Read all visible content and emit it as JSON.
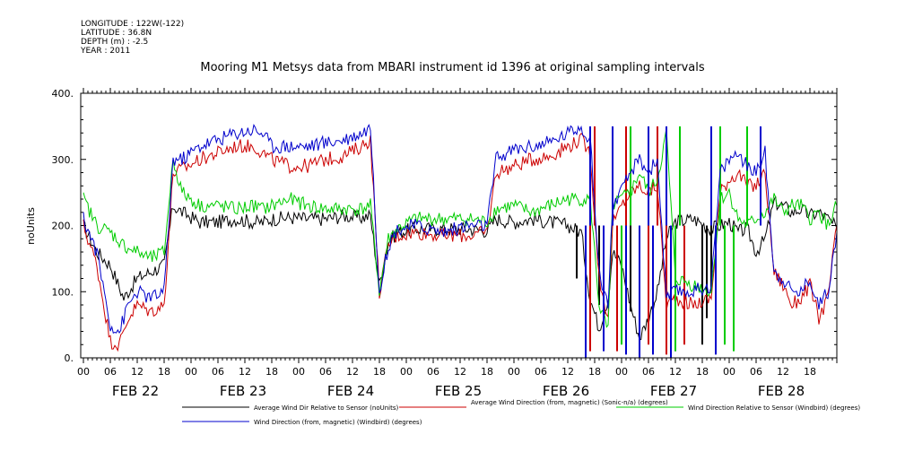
{
  "meta": {
    "longitude": "LONGITUDE : 122W(-122)",
    "latitude": "LATITUDE : 36.8N",
    "depth": "DEPTH (m) : -2.5",
    "year": "YEAR : 2011"
  },
  "chart_data": {
    "type": "line",
    "title": "Mooring M1 Metsys data from MBARI instrument id 1396 at original sampling intervals",
    "ylabel": "noUnits",
    "xlabel": "",
    "ylim": [
      0,
      400
    ],
    "yticks": [
      "0.",
      "100.",
      "200.",
      "300.",
      "400."
    ],
    "xlim_hours": [
      0,
      168
    ],
    "hour_ticks": [
      "00",
      "06",
      "12",
      "18",
      "00",
      "06",
      "12",
      "18",
      "00",
      "06",
      "12",
      "18",
      "00",
      "06",
      "12",
      "18",
      "00",
      "06",
      "12",
      "18",
      "00",
      "06",
      "12",
      "18",
      "00",
      "06",
      "12",
      "18"
    ],
    "day_labels": [
      "FEB 22",
      "FEB 23",
      "FEB 24",
      "FEB 25",
      "FEB 26",
      "FEB 27",
      "FEB 28"
    ],
    "series": [
      {
        "name": "Average Wind Dir Relative to Sensor (noUnits)",
        "color": "#000000",
        "knots": [
          [
            0,
            200
          ],
          [
            3,
            160
          ],
          [
            6,
            140
          ],
          [
            9,
            90
          ],
          [
            12,
            120
          ],
          [
            15,
            130
          ],
          [
            18,
            140
          ],
          [
            20,
            230
          ],
          [
            22,
            220
          ],
          [
            26,
            205
          ],
          [
            30,
            205
          ],
          [
            34,
            210
          ],
          [
            38,
            205
          ],
          [
            40,
            205
          ],
          [
            42,
            210
          ],
          [
            46,
            212
          ],
          [
            50,
            210
          ],
          [
            54,
            210
          ],
          [
            58,
            215
          ],
          [
            62,
            212
          ],
          [
            64,
            215
          ],
          [
            66,
            110
          ],
          [
            68,
            175
          ],
          [
            70,
            190
          ],
          [
            74,
            195
          ],
          [
            80,
            195
          ],
          [
            86,
            195
          ],
          [
            90,
            192
          ],
          [
            92,
            210
          ],
          [
            96,
            205
          ],
          [
            100,
            210
          ],
          [
            104,
            205
          ],
          [
            108,
            200
          ],
          [
            111,
            190
          ],
          [
            113,
            90
          ],
          [
            115,
            45
          ],
          [
            117,
            90
          ],
          [
            118,
            160
          ],
          [
            120,
            140
          ],
          [
            122,
            80
          ],
          [
            124,
            30
          ],
          [
            126,
            60
          ],
          [
            128,
            100
          ],
          [
            130,
            180
          ],
          [
            132,
            205
          ],
          [
            136,
            210
          ],
          [
            140,
            195
          ],
          [
            142,
            200
          ],
          [
            144,
            205
          ],
          [
            146,
            190
          ],
          [
            148,
            195
          ],
          [
            150,
            160
          ],
          [
            152,
            180
          ],
          [
            154,
            235
          ],
          [
            156,
            230
          ],
          [
            158,
            220
          ],
          [
            160,
            225
          ],
          [
            162,
            215
          ],
          [
            164,
            220
          ],
          [
            166,
            210
          ],
          [
            168,
            195
          ]
        ],
        "spikes": [
          [
            110,
            120
          ],
          [
            112,
            140
          ],
          [
            115,
            80
          ],
          [
            122,
            70
          ],
          [
            124,
            40
          ],
          [
            138,
            20
          ],
          [
            139,
            60
          ],
          [
            140,
            100
          ]
        ]
      },
      {
        "name": "Average Wind Direction (from, magnetic) (Sonic-n/a) (degrees)",
        "color": "#cc0000",
        "knots": [
          [
            0,
            200
          ],
          [
            3,
            140
          ],
          [
            6,
            25
          ],
          [
            8,
            20
          ],
          [
            10,
            60
          ],
          [
            12,
            80
          ],
          [
            15,
            70
          ],
          [
            18,
            80
          ],
          [
            20,
            280
          ],
          [
            22,
            285
          ],
          [
            26,
            300
          ],
          [
            30,
            310
          ],
          [
            34,
            320
          ],
          [
            38,
            320
          ],
          [
            40,
            310
          ],
          [
            42,
            300
          ],
          [
            46,
            290
          ],
          [
            50,
            290
          ],
          [
            54,
            300
          ],
          [
            58,
            305
          ],
          [
            62,
            320
          ],
          [
            64,
            330
          ],
          [
            66,
            100
          ],
          [
            68,
            170
          ],
          [
            70,
            185
          ],
          [
            74,
            190
          ],
          [
            80,
            185
          ],
          [
            86,
            185
          ],
          [
            90,
            190
          ],
          [
            92,
            280
          ],
          [
            96,
            290
          ],
          [
            100,
            300
          ],
          [
            104,
            305
          ],
          [
            108,
            320
          ],
          [
            111,
            330
          ],
          [
            113,
            310
          ],
          [
            115,
            120
          ],
          [
            117,
            60
          ],
          [
            118,
            200
          ],
          [
            120,
            230
          ],
          [
            122,
            250
          ],
          [
            124,
            260
          ],
          [
            126,
            250
          ],
          [
            128,
            260
          ],
          [
            130,
            80
          ],
          [
            132,
            90
          ],
          [
            136,
            80
          ],
          [
            140,
            90
          ],
          [
            142,
            250
          ],
          [
            144,
            270
          ],
          [
            146,
            280
          ],
          [
            148,
            260
          ],
          [
            150,
            260
          ],
          [
            152,
            280
          ],
          [
            154,
            130
          ],
          [
            156,
            110
          ],
          [
            158,
            80
          ],
          [
            160,
            90
          ],
          [
            162,
            110
          ],
          [
            164,
            60
          ],
          [
            166,
            90
          ],
          [
            168,
            200
          ]
        ],
        "spikes": [
          [
            113,
            10
          ],
          [
            114,
            350
          ],
          [
            119,
            10
          ],
          [
            121,
            350
          ],
          [
            124,
            5
          ],
          [
            126,
            20
          ],
          [
            128,
            350
          ],
          [
            130,
            5
          ],
          [
            132,
            10
          ],
          [
            134,
            20
          ]
        ]
      },
      {
        "name": "Wind Direction Relative to Sensor (Windbird) (degrees)",
        "color": "#00cc00",
        "knots": [
          [
            0,
            240
          ],
          [
            3,
            200
          ],
          [
            6,
            190
          ],
          [
            9,
            170
          ],
          [
            12,
            160
          ],
          [
            15,
            150
          ],
          [
            18,
            160
          ],
          [
            20,
            300
          ],
          [
            22,
            250
          ],
          [
            26,
            230
          ],
          [
            30,
            230
          ],
          [
            34,
            225
          ],
          [
            38,
            230
          ],
          [
            40,
            225
          ],
          [
            42,
            230
          ],
          [
            46,
            240
          ],
          [
            50,
            230
          ],
          [
            54,
            225
          ],
          [
            58,
            225
          ],
          [
            62,
            225
          ],
          [
            64,
            230
          ],
          [
            66,
            100
          ],
          [
            68,
            180
          ],
          [
            70,
            195
          ],
          [
            74,
            210
          ],
          [
            80,
            210
          ],
          [
            86,
            210
          ],
          [
            90,
            205
          ],
          [
            92,
            225
          ],
          [
            96,
            230
          ],
          [
            100,
            220
          ],
          [
            104,
            230
          ],
          [
            108,
            240
          ],
          [
            111,
            240
          ],
          [
            113,
            240
          ],
          [
            115,
            80
          ],
          [
            117,
            40
          ],
          [
            118,
            230
          ],
          [
            120,
            240
          ],
          [
            122,
            250
          ],
          [
            124,
            280
          ],
          [
            126,
            250
          ],
          [
            128,
            270
          ],
          [
            130,
            340
          ],
          [
            132,
            120
          ],
          [
            136,
            110
          ],
          [
            140,
            100
          ],
          [
            142,
            240
          ],
          [
            144,
            250
          ],
          [
            146,
            210
          ],
          [
            148,
            200
          ],
          [
            150,
            210
          ],
          [
            152,
            220
          ],
          [
            154,
            240
          ],
          [
            156,
            220
          ],
          [
            158,
            230
          ],
          [
            160,
            230
          ],
          [
            162,
            210
          ],
          [
            164,
            220
          ],
          [
            166,
            200
          ],
          [
            168,
            230
          ]
        ],
        "spikes": [
          [
            120,
            20
          ],
          [
            122,
            350
          ],
          [
            132,
            10
          ],
          [
            133,
            350
          ],
          [
            142,
            350
          ],
          [
            143,
            20
          ],
          [
            145,
            10
          ],
          [
            148,
            350
          ]
        ]
      },
      {
        "name": "Wind Direction (from, magnetic) (Windbird) (degrees)",
        "color": "#0000cc",
        "knots": [
          [
            0,
            210
          ],
          [
            3,
            160
          ],
          [
            6,
            50
          ],
          [
            8,
            40
          ],
          [
            10,
            80
          ],
          [
            12,
            100
          ],
          [
            15,
            90
          ],
          [
            18,
            100
          ],
          [
            20,
            300
          ],
          [
            22,
            300
          ],
          [
            26,
            320
          ],
          [
            30,
            330
          ],
          [
            34,
            340
          ],
          [
            38,
            345
          ],
          [
            40,
            340
          ],
          [
            42,
            320
          ],
          [
            46,
            320
          ],
          [
            50,
            320
          ],
          [
            54,
            325
          ],
          [
            58,
            330
          ],
          [
            62,
            340
          ],
          [
            64,
            350
          ],
          [
            66,
            100
          ],
          [
            68,
            170
          ],
          [
            70,
            195
          ],
          [
            74,
            200
          ],
          [
            80,
            190
          ],
          [
            86,
            200
          ],
          [
            90,
            200
          ],
          [
            92,
            300
          ],
          [
            96,
            315
          ],
          [
            100,
            320
          ],
          [
            104,
            325
          ],
          [
            108,
            340
          ],
          [
            111,
            350
          ],
          [
            113,
            330
          ],
          [
            115,
            130
          ],
          [
            117,
            80
          ],
          [
            118,
            230
          ],
          [
            120,
            250
          ],
          [
            122,
            280
          ],
          [
            124,
            300
          ],
          [
            126,
            280
          ],
          [
            128,
            300
          ],
          [
            130,
            90
          ],
          [
            132,
            100
          ],
          [
            136,
            100
          ],
          [
            140,
            110
          ],
          [
            142,
            280
          ],
          [
            144,
            300
          ],
          [
            146,
            310
          ],
          [
            148,
            290
          ],
          [
            150,
            280
          ],
          [
            152,
            310
          ],
          [
            154,
            130
          ],
          [
            156,
            120
          ],
          [
            158,
            100
          ],
          [
            160,
            100
          ],
          [
            162,
            120
          ],
          [
            164,
            80
          ],
          [
            166,
            100
          ],
          [
            168,
            190
          ]
        ],
        "spikes": [
          [
            112,
            0
          ],
          [
            113,
            350
          ],
          [
            116,
            10
          ],
          [
            118,
            350
          ],
          [
            121,
            5
          ],
          [
            124,
            0
          ],
          [
            126,
            350
          ],
          [
            127,
            5
          ],
          [
            130,
            350
          ],
          [
            131,
            0
          ],
          [
            140,
            350
          ],
          [
            141,
            5
          ],
          [
            151,
            350
          ]
        ]
      }
    ],
    "legend_placement": "bottom"
  }
}
